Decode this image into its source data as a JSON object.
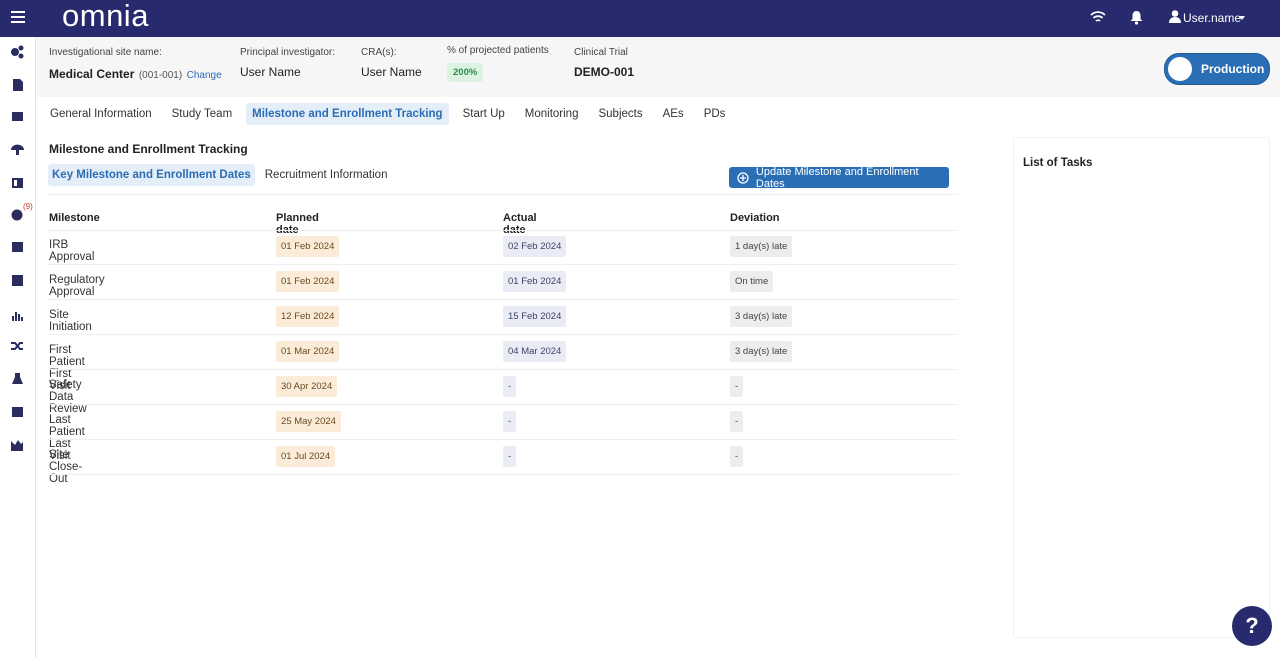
{
  "header": {
    "logo": "omnia",
    "user": "User.name"
  },
  "sidebar": {
    "badge": "(9)"
  },
  "site": {
    "label": "Investigational site name:",
    "value": "Medical Center",
    "code": "(001-001)",
    "link": "Change"
  },
  "investigator": {
    "label": "Principal investigator:",
    "value": "User Name"
  },
  "cra": {
    "label": "CRA(s):",
    "value": "User Name"
  },
  "patients": {
    "label": "% of projected patients",
    "value": "200%"
  },
  "trial": {
    "label": "Clinical Trial",
    "value": "DEMO-001"
  },
  "environment": "Production",
  "tabs": [
    "General Information",
    "Study Team",
    "Milestone and Enrollment Tracking",
    "Start Up",
    "Monitoring",
    "Subjects",
    "AEs",
    "PDs"
  ],
  "active_tab": 2,
  "section_title": "Milestone and Enrollment Tracking",
  "subtabs": [
    "Key Milestone and Enrollment Dates",
    "Recruitment Information"
  ],
  "active_subtab": 0,
  "update_button": "Update Milestone and Enrollment Dates",
  "table": {
    "headers": [
      "Milestone",
      "Planned date",
      "Actual date",
      "Deviation"
    ],
    "rows": [
      [
        "IRB Approval",
        "01 Feb 2024",
        "02 Feb 2024",
        "1 day(s) late"
      ],
      [
        "Regulatory Approval",
        "01 Feb 2024",
        "01 Feb 2024",
        "On time"
      ],
      [
        "Site Initiation",
        "12 Feb 2024",
        "15 Feb 2024",
        "3 day(s) late"
      ],
      [
        "First Patient First Visit",
        "01 Mar 2024",
        "04 Mar 2024",
        "3 day(s) late"
      ],
      [
        "Safety Data Review",
        "30 Apr 2024",
        "-",
        "-"
      ],
      [
        "Last Patient Last Visit",
        "25 May 2024",
        "-",
        "-"
      ],
      [
        "Site Close-Out",
        "01 Jul 2024",
        "-",
        "-"
      ]
    ]
  },
  "tasks_title": "List of Tasks",
  "help": "?"
}
